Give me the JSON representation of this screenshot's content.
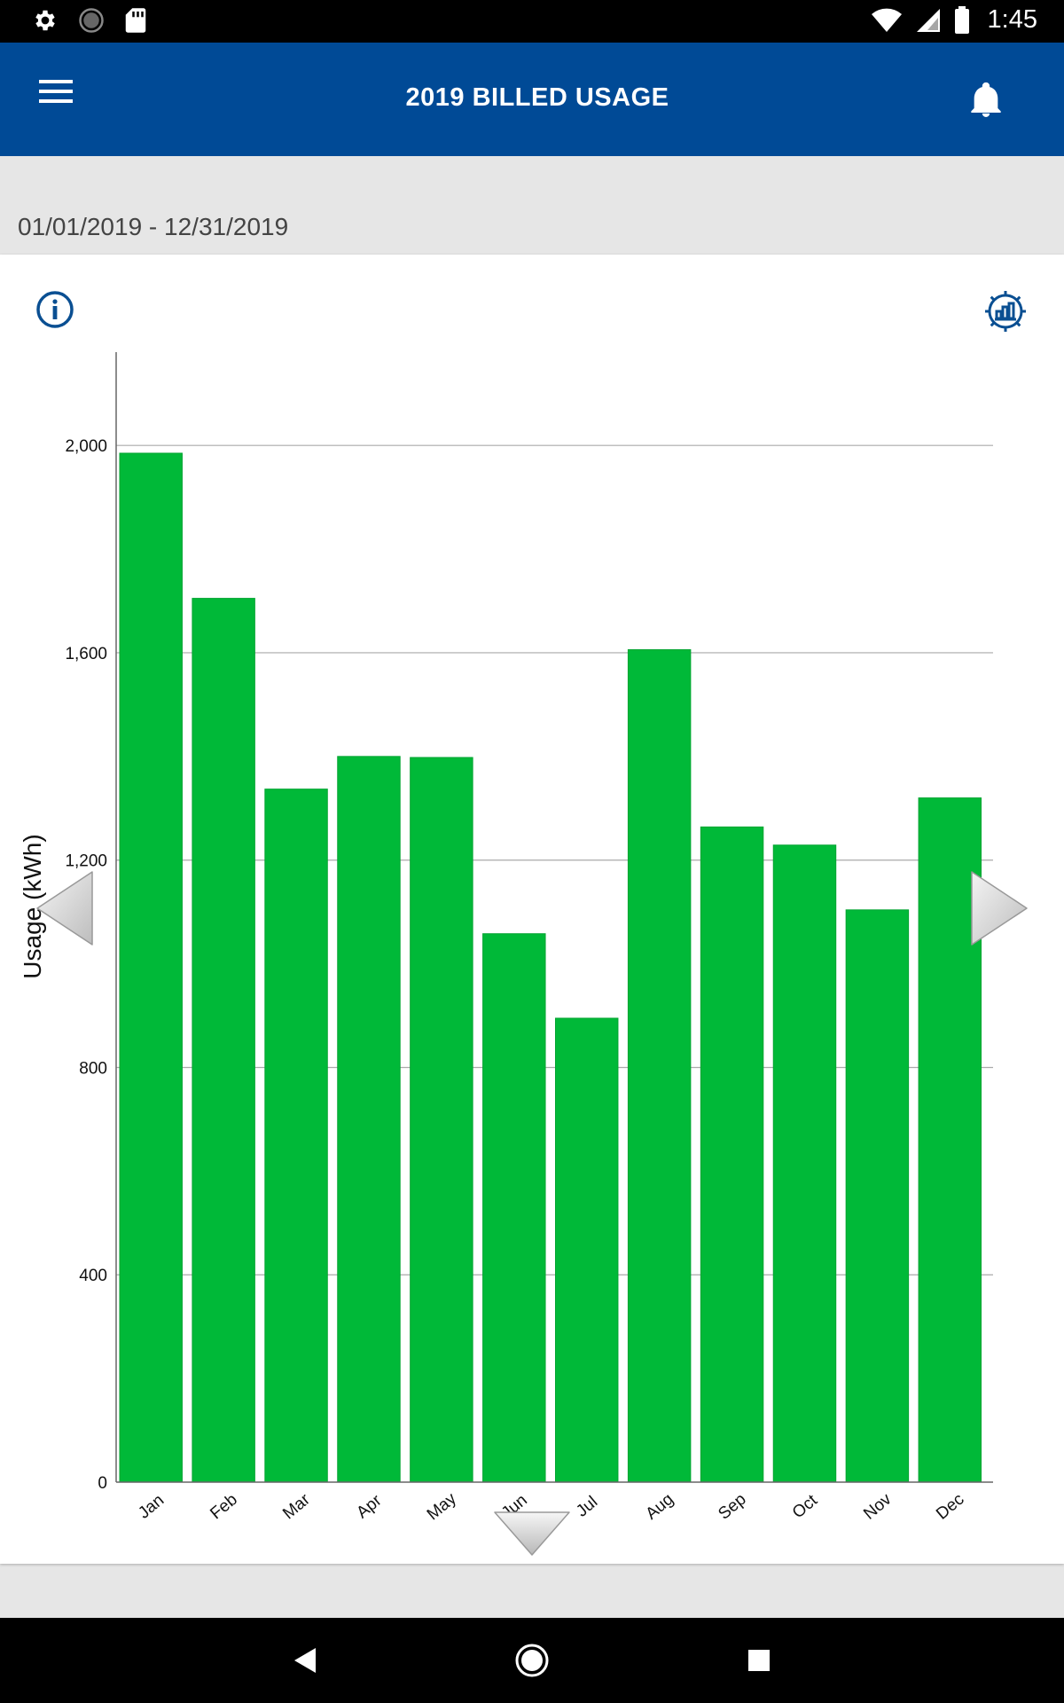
{
  "status_bar": {
    "time": "1:45",
    "icons": [
      "settings-icon",
      "sync-icon",
      "sd-card-icon",
      "wifi-icon",
      "signal-icon",
      "battery-icon"
    ]
  },
  "app_bar": {
    "title": "2019 BILLED USAGE",
    "menu_icon": "hamburger-menu-icon",
    "notification_icon": "bell-icon"
  },
  "date_range": "01/01/2019 - 12/31/2019",
  "colors": {
    "app_bar": "#004a96",
    "bar": "#00b938",
    "accent_icon": "#0a4f92"
  },
  "chart_data": {
    "type": "bar",
    "categories": [
      "Jan",
      "Feb",
      "Mar",
      "Apr",
      "May",
      "Jun",
      "Jul",
      "Aug",
      "Sep",
      "Oct",
      "Nov",
      "Dec"
    ],
    "values": [
      1985,
      1705,
      1337,
      1400,
      1398,
      1058,
      895,
      1606,
      1264,
      1229,
      1104,
      1320
    ],
    "ylabel": "Usage (kWh)",
    "yticks": [
      "0",
      "400",
      "800",
      "1,200",
      "1,600",
      "2,000"
    ],
    "ylim": [
      0,
      2180
    ],
    "grid": true
  },
  "nav_arrows": {
    "left_icon": "triangle-left-icon",
    "right_icon": "triangle-right-icon",
    "down_icon": "triangle-down-icon"
  },
  "system_nav": [
    "back-icon",
    "home-icon",
    "recents-icon"
  ]
}
